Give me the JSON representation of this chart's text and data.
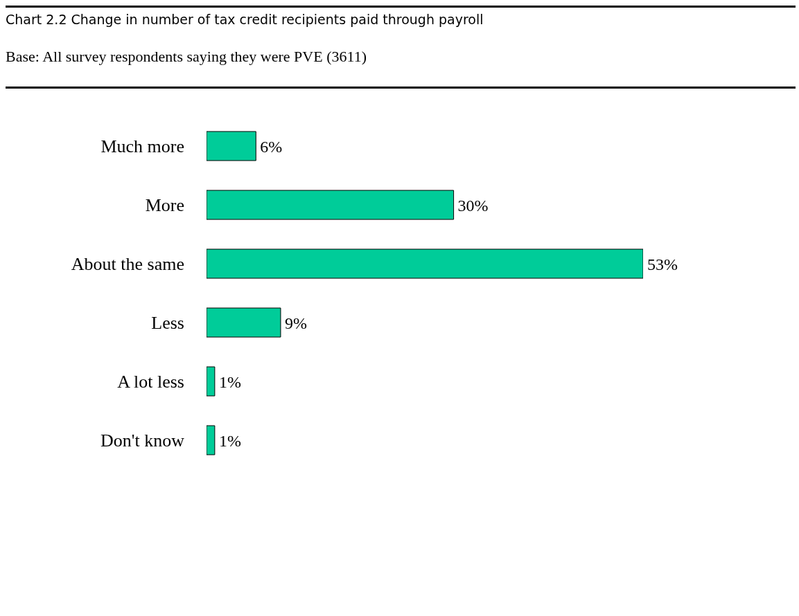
{
  "chart_data": {
    "type": "bar",
    "orientation": "horizontal",
    "title": "Chart 2.2 Change in number of tax credit recipients paid through payroll",
    "subtitle": "Base: All survey respondents saying they were PVE (3611)",
    "categories": [
      "Much more",
      "More",
      "About the same",
      "Less",
      "A lot less",
      "Don't know"
    ],
    "values": [
      6,
      30,
      53,
      9,
      1,
      1
    ],
    "value_labels": [
      "6%",
      "30%",
      "53%",
      "9%",
      "1%",
      "1%"
    ],
    "color": "#00cc99"
  }
}
